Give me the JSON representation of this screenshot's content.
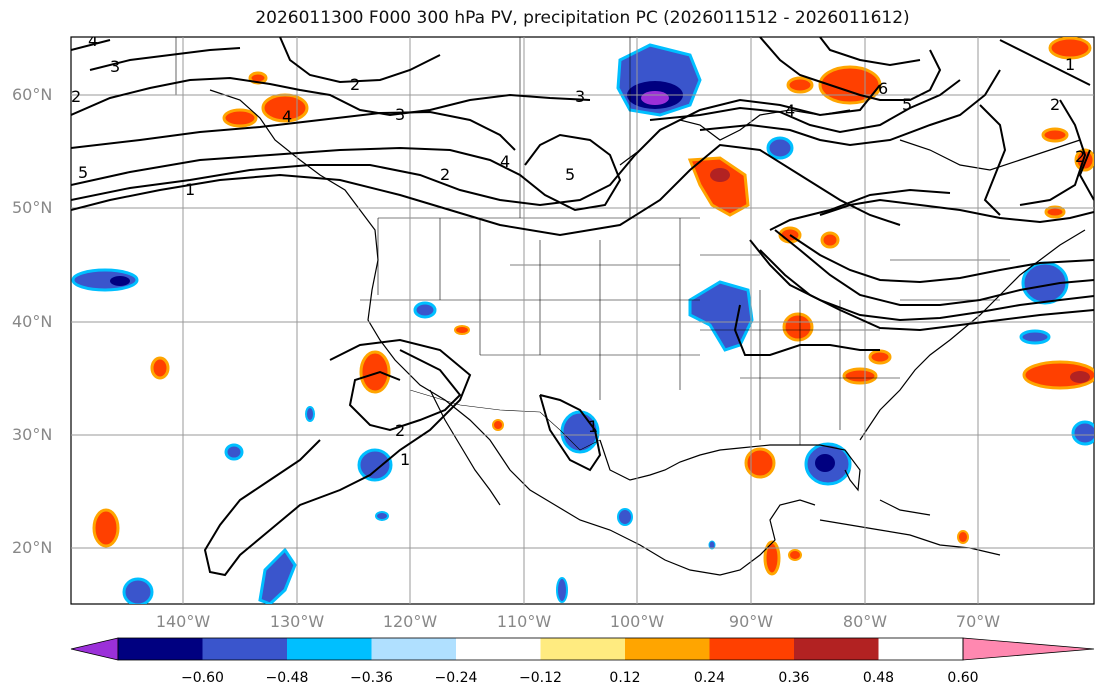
{
  "title": "2026011300 F000 300 hPa PV, precipitation PC (2026011512 - 2026011612)",
  "map": {
    "lat_labels": [
      "60°N",
      "50°N",
      "40°N",
      "30°N",
      "20°N"
    ],
    "lon_labels": [
      "140°W",
      "130°W",
      "120°W",
      "110°W",
      "100°W",
      "90°W",
      "80°W",
      "70°W"
    ],
    "contour_labels": [
      "4",
      "3",
      "2",
      "3",
      "5",
      "4",
      "1",
      "2",
      "4",
      "5",
      "3",
      "4",
      "6",
      "5",
      "2",
      "2",
      "1",
      "2",
      "1",
      "1",
      "2"
    ]
  },
  "colorbar": {
    "ticks": [
      "−0.60",
      "−0.48",
      "−0.36",
      "−0.24",
      "−0.12",
      "0.12",
      "0.24",
      "0.36",
      "0.48",
      "0.60"
    ],
    "colors": [
      "#9b30d9",
      "#000080",
      "#3a55cc",
      "#00bfff",
      "#b0e0ff",
      "#ffffff",
      "#ffeb80",
      "#ffa500",
      "#ff4000",
      "#b22222",
      "#ff88b0"
    ]
  },
  "colors": {
    "contour": "#000000",
    "grid": "#999999",
    "pos": "#ff4000",
    "neg": "#3a55cc"
  }
}
